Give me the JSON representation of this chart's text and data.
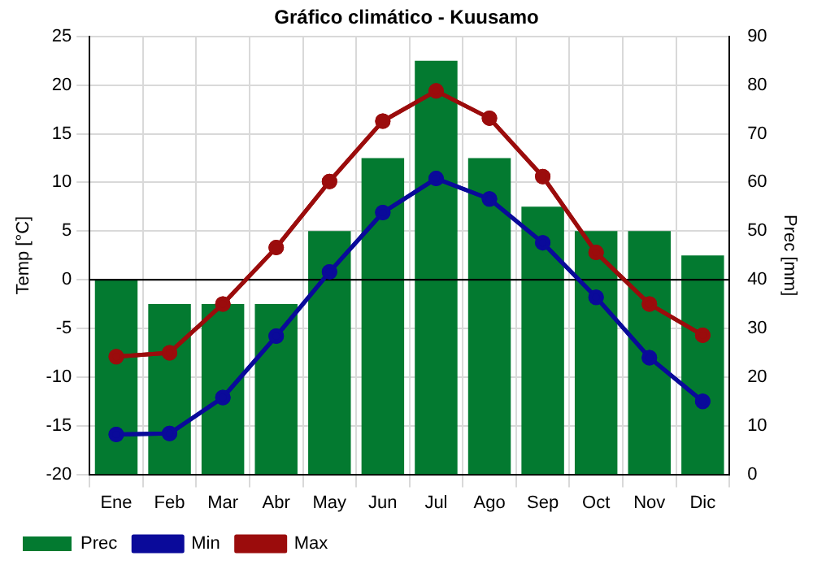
{
  "chart_data": {
    "type": "bar",
    "title": "Gráfico climático - Kuusamo",
    "ylabel": "Temp [°C]",
    "y2label": "Prec [mm]",
    "categories": [
      "Ene",
      "Feb",
      "Mar",
      "Abr",
      "May",
      "Jun",
      "Jul",
      "Ago",
      "Sep",
      "Oct",
      "Nov",
      "Dic"
    ],
    "series": [
      {
        "name": "Prec",
        "axis": "y2",
        "color": "#037a30",
        "values": [
          40,
          35,
          35,
          35,
          50,
          65,
          85,
          65,
          55,
          50,
          50,
          45
        ]
      },
      {
        "name": "Min",
        "type": "line",
        "color": "#0a0a9a",
        "values": [
          -15.9,
          -15.8,
          -12.1,
          -5.8,
          0.8,
          6.9,
          10.4,
          8.3,
          3.8,
          -1.8,
          -8,
          -12.5
        ]
      },
      {
        "name": "Max",
        "type": "line",
        "color": "#9b0c0c",
        "values": [
          -7.9,
          -7.5,
          -2.5,
          3.3,
          10.1,
          16.3,
          19.4,
          16.6,
          10.6,
          2.8,
          -2.5,
          -5.7
        ]
      }
    ],
    "ylim": [
      -20,
      25
    ],
    "yticks": [
      -20,
      -15,
      -10,
      -5,
      0,
      5,
      10,
      15,
      20,
      25
    ],
    "y2lim": [
      0,
      90
    ],
    "y2ticks": [
      0,
      10,
      20,
      30,
      40,
      50,
      60,
      70,
      80,
      90
    ],
    "ref_lines": [
      {
        "axis": "y",
        "value": 0,
        "color": "#000000"
      }
    ],
    "grid": true,
    "legend": "bottom left",
    "marker": "circle",
    "line_style": "solid"
  }
}
